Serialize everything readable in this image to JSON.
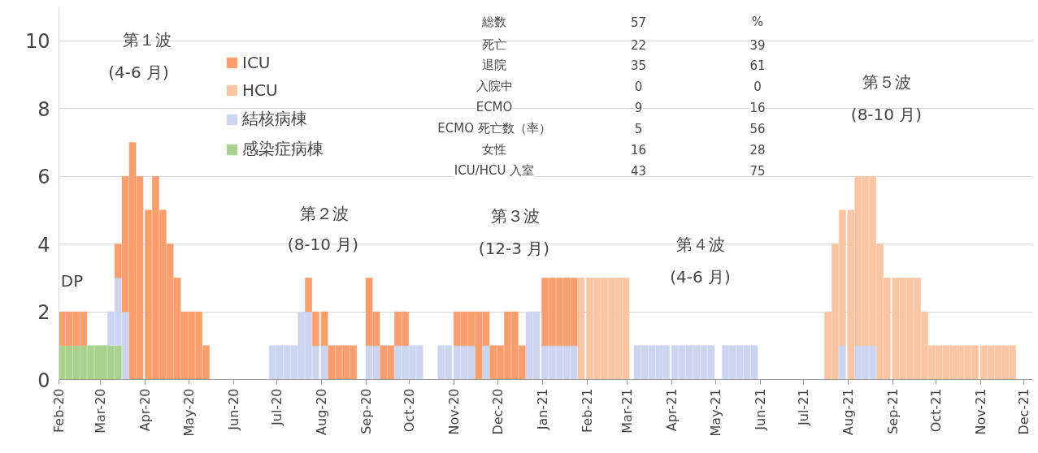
{
  "chart_data": {
    "type": "bar",
    "stacked": true,
    "grid": "y",
    "legend": "top left",
    "xlim": [
      "2020-02-01",
      "2021-12-07"
    ],
    "xticks": [
      {
        "value": "2020-02-01",
        "label": "Feb-20"
      },
      {
        "value": "2020-03-01",
        "label": "Mar-20"
      },
      {
        "value": "2020-04-01",
        "label": "Apr-20"
      },
      {
        "value": "2020-05-01",
        "label": "May-20"
      },
      {
        "value": "2020-06-01",
        "label": "Jun-20"
      },
      {
        "value": "2020-07-01",
        "label": "Jul-20"
      },
      {
        "value": "2020-08-01",
        "label": "Aug-20"
      },
      {
        "value": "2020-09-01",
        "label": "Sep-20"
      },
      {
        "value": "2020-10-01",
        "label": "Oct-20"
      },
      {
        "value": "2020-11-01",
        "label": "Nov-20"
      },
      {
        "value": "2020-12-01",
        "label": "Dec-20"
      },
      {
        "value": "2021-01-01",
        "label": "Jan-21"
      },
      {
        "value": "2021-02-01",
        "label": "Feb-21"
      },
      {
        "value": "2021-03-01",
        "label": "Mar-21"
      },
      {
        "value": "2021-04-01",
        "label": "Apr-21"
      },
      {
        "value": "2021-05-01",
        "label": "May-21"
      },
      {
        "value": "2021-06-01",
        "label": "Jun-21"
      },
      {
        "value": "2021-07-01",
        "label": "Jul-21"
      },
      {
        "value": "2021-08-01",
        "label": "Aug-21"
      },
      {
        "value": "2021-09-01",
        "label": "Sep-21"
      },
      {
        "value": "2021-10-01",
        "label": "Oct-21"
      },
      {
        "value": "2021-11-01",
        "label": "Nov-21"
      },
      {
        "value": "2021-12-01",
        "label": "Dec-21"
      }
    ],
    "ylim": [
      0,
      11
    ],
    "yticks": [
      0,
      2,
      4,
      6,
      8,
      10
    ],
    "x": [
      "2020-02-03",
      "2020-02-08",
      "2020-02-13",
      "2020-02-18",
      "2020-02-23",
      "2020-02-28",
      "2020-03-03",
      "2020-03-08",
      "2020-03-13",
      "2020-03-18",
      "2020-03-23",
      "2020-03-28",
      "2020-04-03",
      "2020-04-08",
      "2020-04-13",
      "2020-04-18",
      "2020-04-23",
      "2020-04-28",
      "2020-05-03",
      "2020-05-08",
      "2020-05-13",
      "2020-06-28",
      "2020-07-03",
      "2020-07-08",
      "2020-07-13",
      "2020-07-18",
      "2020-07-23",
      "2020-07-28",
      "2020-08-03",
      "2020-08-08",
      "2020-08-13",
      "2020-08-18",
      "2020-08-23",
      "2020-09-03",
      "2020-09-08",
      "2020-09-13",
      "2020-09-18",
      "2020-09-23",
      "2020-09-28",
      "2020-10-03",
      "2020-10-08",
      "2020-10-23",
      "2020-10-28",
      "2020-11-03",
      "2020-11-08",
      "2020-11-13",
      "2020-11-18",
      "2020-11-23",
      "2020-11-28",
      "2020-12-03",
      "2020-12-08",
      "2020-12-13",
      "2020-12-18",
      "2020-12-23",
      "2020-12-28",
      "2021-01-03",
      "2021-01-08",
      "2021-01-13",
      "2021-01-18",
      "2021-01-23",
      "2021-01-28",
      "2021-02-03",
      "2021-02-08",
      "2021-02-13",
      "2021-02-18",
      "2021-02-23",
      "2021-02-28",
      "2021-03-08",
      "2021-03-13",
      "2021-03-18",
      "2021-03-23",
      "2021-03-28",
      "2021-04-03",
      "2021-04-08",
      "2021-04-13",
      "2021-04-18",
      "2021-04-23",
      "2021-04-28",
      "2021-05-08",
      "2021-05-13",
      "2021-05-18",
      "2021-05-23",
      "2021-05-28",
      "2021-07-18",
      "2021-07-23",
      "2021-07-28",
      "2021-08-03",
      "2021-08-08",
      "2021-08-13",
      "2021-08-18",
      "2021-08-23",
      "2021-08-28",
      "2021-09-03",
      "2021-09-08",
      "2021-09-13",
      "2021-09-18",
      "2021-09-23",
      "2021-09-28",
      "2021-10-03",
      "2021-10-08",
      "2021-10-13",
      "2021-10-18",
      "2021-10-23",
      "2021-10-28",
      "2021-11-03",
      "2021-11-08",
      "2021-11-13",
      "2021-11-18",
      "2021-11-23"
    ],
    "series": [
      {
        "name": "感染症病棟",
        "color": "#a9d18e",
        "values": [
          1,
          1,
          1,
          1,
          1,
          1,
          1,
          1,
          1,
          0,
          0,
          0,
          0,
          0,
          0,
          0,
          0,
          0,
          0,
          0,
          0,
          0,
          0,
          0,
          0,
          0,
          0,
          0,
          0,
          0,
          0,
          0,
          0,
          0,
          0,
          0,
          0,
          0,
          0,
          0,
          0,
          0,
          0,
          0,
          0,
          0,
          0,
          0,
          0,
          0,
          0,
          0,
          0,
          0,
          0,
          0,
          0,
          0,
          0,
          0,
          0,
          0,
          0,
          0,
          0,
          0,
          0,
          0,
          0,
          0,
          0,
          0,
          0,
          0,
          0,
          0,
          0,
          0,
          0,
          0,
          0,
          0,
          0,
          0,
          0,
          0,
          0,
          0,
          0,
          0,
          0,
          0,
          0,
          0,
          0,
          0,
          0,
          0,
          0,
          0,
          0,
          0,
          0,
          0,
          0,
          0,
          0,
          0,
          0
        ]
      },
      {
        "name": "結核病棟",
        "color": "#ccd5ef",
        "values": [
          0,
          0,
          0,
          0,
          0,
          0,
          0,
          1,
          2,
          2,
          0,
          0,
          0,
          0,
          0,
          0,
          0,
          0,
          0,
          0,
          0,
          1,
          1,
          1,
          1,
          2,
          2,
          1,
          1,
          0,
          0,
          0,
          0,
          1,
          1,
          0,
          0,
          1,
          1,
          1,
          1,
          1,
          1,
          1,
          1,
          1,
          0,
          1,
          0,
          0,
          0,
          0,
          0,
          2,
          2,
          1,
          1,
          1,
          1,
          1,
          0,
          0,
          0,
          0,
          0,
          0,
          0,
          1,
          1,
          1,
          1,
          1,
          1,
          1,
          1,
          1,
          1,
          1,
          1,
          1,
          1,
          1,
          1,
          0,
          0,
          1,
          0,
          1,
          1,
          1,
          0,
          0,
          0,
          0,
          0,
          0,
          0,
          0,
          0,
          0,
          0,
          0,
          0,
          0,
          0,
          0,
          0,
          0,
          0
        ]
      },
      {
        "name": "HCU",
        "color": "#f9c5a2",
        "values": [
          0,
          0,
          0,
          0,
          0,
          0,
          0,
          0,
          0,
          0,
          0,
          0,
          0,
          0,
          0,
          0,
          0,
          0,
          0,
          0,
          0,
          0,
          0,
          0,
          0,
          0,
          0,
          0,
          0,
          0,
          0,
          0,
          0,
          0,
          0,
          0,
          0,
          0,
          0,
          0,
          0,
          0,
          0,
          0,
          0,
          0,
          0,
          0,
          0,
          0,
          0,
          0,
          0,
          0,
          0,
          0,
          0,
          0,
          0,
          0,
          3,
          3,
          3,
          3,
          3,
          3,
          3,
          0,
          0,
          0,
          0,
          0,
          0,
          0,
          0,
          0,
          0,
          0,
          0,
          0,
          0,
          0,
          0,
          2,
          4,
          4,
          5,
          5,
          5,
          5,
          4,
          3,
          3,
          3,
          3,
          3,
          2,
          1,
          1,
          1,
          1,
          1,
          1,
          1,
          1,
          1,
          1,
          1,
          1
        ]
      },
      {
        "name": "ICU",
        "color": "#fb9e6d",
        "values": [
          1,
          1,
          1,
          1,
          0,
          0,
          0,
          0,
          1,
          4,
          7,
          6,
          5,
          6,
          5,
          4,
          3,
          2,
          2,
          2,
          1,
          0,
          0,
          0,
          0,
          0,
          1,
          1,
          1,
          1,
          1,
          1,
          1,
          2,
          1,
          1,
          1,
          1,
          1,
          0,
          0,
          0,
          0,
          1,
          1,
          1,
          2,
          1,
          1,
          1,
          2,
          2,
          1,
          0,
          0,
          2,
          2,
          2,
          2,
          2,
          0,
          0,
          0,
          0,
          0,
          0,
          0,
          0,
          0,
          0,
          0,
          0,
          0,
          0,
          0,
          0,
          0,
          0,
          0,
          0,
          0,
          0,
          0,
          0,
          0,
          0,
          0,
          0,
          0,
          0,
          0,
          0,
          0,
          0,
          0,
          0,
          0,
          0,
          0,
          0,
          0,
          0,
          0,
          0,
          0,
          0,
          0,
          0,
          0
        ]
      }
    ],
    "annotations": [
      "第１波",
      "(4-6 月)",
      "DP",
      "第２波",
      "(8-10 月)",
      "第３波",
      "(12-3 月)",
      "第４波",
      "(4-6 月)",
      "第５波",
      "(8-10 月)",
      "総数",
      "57",
      "%",
      "死亡",
      "22",
      "39",
      "退院",
      "35",
      "61",
      "入院中",
      "0",
      "0",
      "ECMO",
      "9",
      "16",
      "ECMO 死亡数（率）",
      "5",
      "56",
      "女性",
      "16",
      "28",
      "ICU/HCU 入室",
      "43",
      "75"
    ]
  }
}
